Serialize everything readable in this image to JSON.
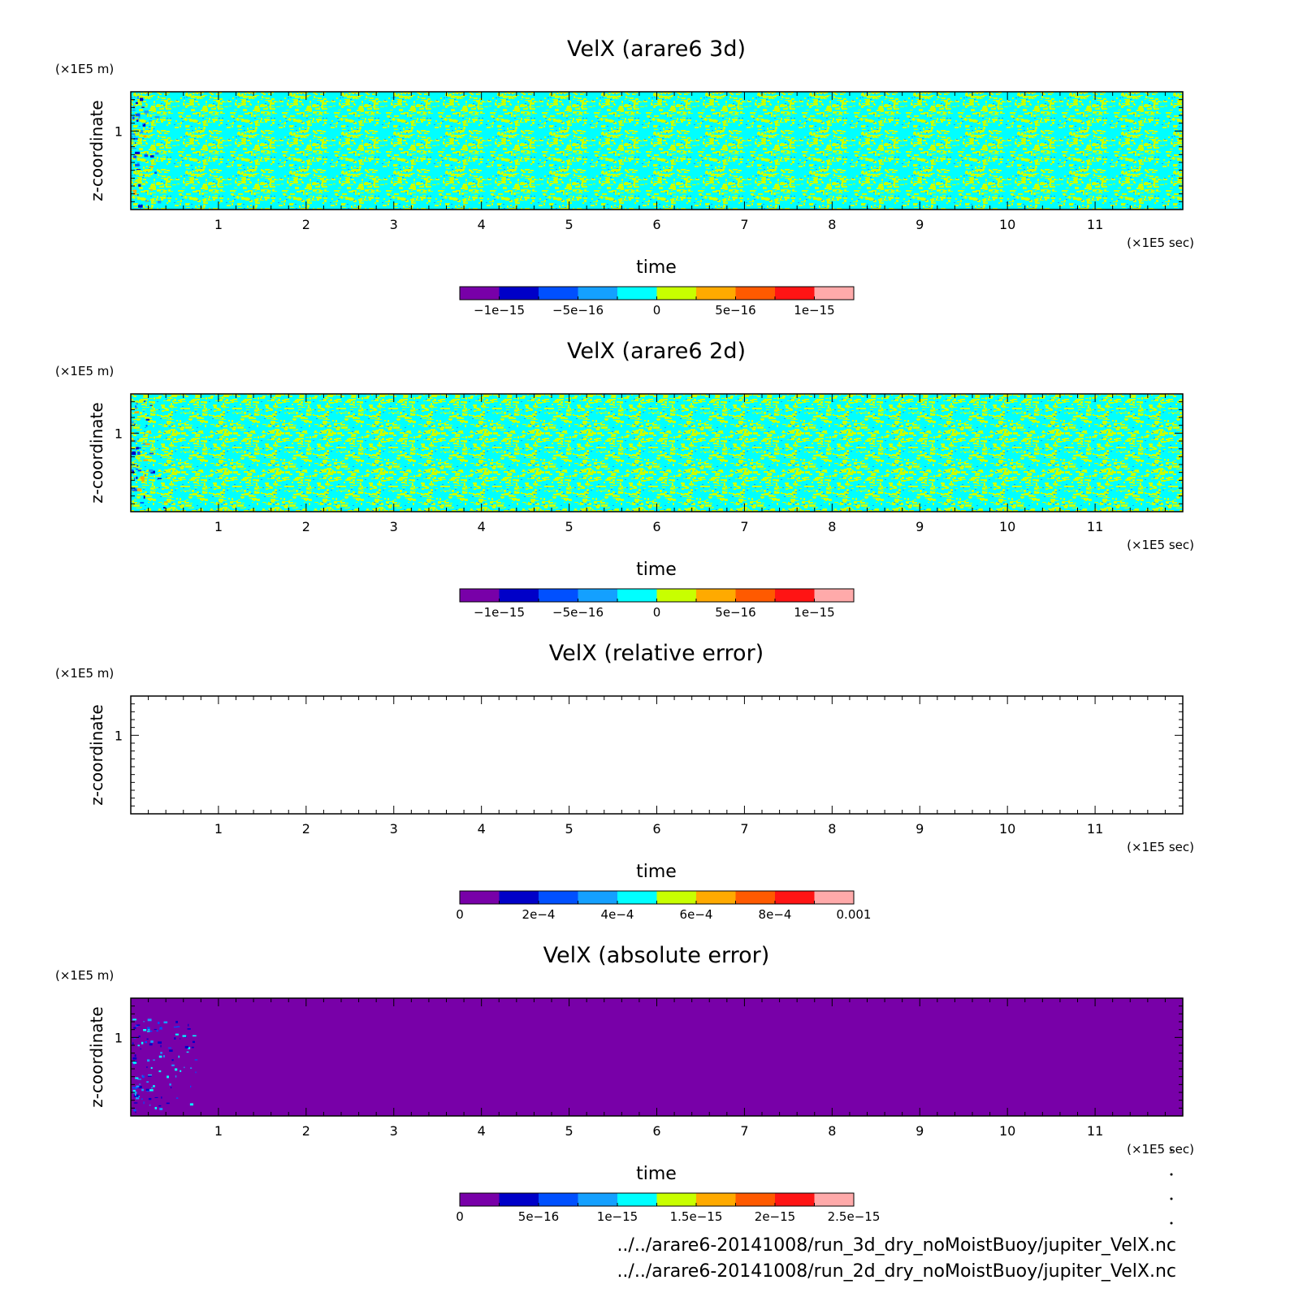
{
  "panels": [
    {
      "title": "VelX (arare6 3d)",
      "y_unit": "(×1E5 m)",
      "x_unit": "(×1E5 sec)",
      "ylabel": "z-coordinate",
      "xlabel": "time",
      "field": "noise",
      "colorbar_ticks": [
        "−1e−15",
        "−5e−16",
        "0",
        "5e−16",
        "1e−15"
      ]
    },
    {
      "title": "VelX (arare6 2d)",
      "y_unit": "(×1E5 m)",
      "x_unit": "(×1E5 sec)",
      "ylabel": "z-coordinate",
      "xlabel": "time",
      "field": "noise",
      "colorbar_ticks": [
        "−1e−15",
        "−5e−16",
        "0",
        "5e−16",
        "1e−15"
      ]
    },
    {
      "title": "VelX (relative error)",
      "y_unit": "(×1E5 m)",
      "x_unit": "(×1E5 sec)",
      "ylabel": "z-coordinate",
      "xlabel": "time",
      "field": "empty",
      "colorbar_ticks": [
        "0",
        "2e−4",
        "4e−4",
        "6e−4",
        "8e−4",
        "0.001"
      ]
    },
    {
      "title": "VelX (absolute error)",
      "y_unit": "(×1E5 m)",
      "x_unit": "(×1E5 sec)",
      "ylabel": "z-coordinate",
      "xlabel": "time",
      "field": "uniform-low",
      "colorbar_ticks": [
        "0",
        "5e−16",
        "1e−15",
        "1.5e−15",
        "2e−15",
        "2.5e−15"
      ]
    }
  ],
  "footer": {
    "source_3d": "../../arare6-20141008/run_3d_dry_noMoistBuoy/jupiter_VelX.nc",
    "source_2d": "../../arare6-20141008/run_2d_dry_noMoistBuoy/jupiter_VelX.nc"
  },
  "chart_data": [
    {
      "type": "heatmap",
      "title": "VelX (arare6 3d)",
      "xlabel": "time",
      "ylabel": "z-coordinate",
      "x_unit": "×1E5 sec",
      "y_unit": "×1E5 m",
      "xlim": [
        0,
        12
      ],
      "ylim": [
        0,
        1.5
      ],
      "x_ticks": [
        "1",
        "2",
        "3",
        "4",
        "5",
        "6",
        "7",
        "8",
        "9",
        "10",
        "11"
      ],
      "y_ticks": [
        "1"
      ],
      "colorbar_levels": [
        -1.25e-15,
        -1e-15,
        -7.5e-16,
        -5e-16,
        -2.5e-16,
        0,
        2.5e-16,
        5e-16,
        7.5e-16,
        1e-15,
        1.25e-15
      ],
      "colorbar_ticks": [
        "−1e−15",
        "−5e−16",
        "0",
        "5e−16",
        "1e−15"
      ],
      "colors": [
        "#7800a8",
        "#0000c8",
        "#0050ff",
        "#14a0ff",
        "#00ffff",
        "#c8ff00",
        "#ffaa00",
        "#ff5a00",
        "#ff1414",
        "#ffaaaa"
      ],
      "description_values": "values fluctuate between about -2.5e-16 and 2.5e-16 (cyan/yellow-green noise)"
    },
    {
      "type": "heatmap",
      "title": "VelX (arare6 2d)",
      "xlabel": "time",
      "ylabel": "z-coordinate",
      "x_unit": "×1E5 sec",
      "y_unit": "×1E5 m",
      "xlim": [
        0,
        12
      ],
      "ylim": [
        0,
        1.5
      ],
      "x_ticks": [
        "1",
        "2",
        "3",
        "4",
        "5",
        "6",
        "7",
        "8",
        "9",
        "10",
        "11"
      ],
      "y_ticks": [
        "1"
      ],
      "colorbar_ticks": [
        "−1e−15",
        "−5e−16",
        "0",
        "5e−16",
        "1e−15"
      ],
      "colors": [
        "#7800a8",
        "#0000c8",
        "#0050ff",
        "#14a0ff",
        "#00ffff",
        "#c8ff00",
        "#ffaa00",
        "#ff5a00",
        "#ff1414",
        "#ffaaaa"
      ]
    },
    {
      "type": "heatmap",
      "title": "VelX (relative error)",
      "xlabel": "time",
      "ylabel": "z-coordinate",
      "x_unit": "×1E5 sec",
      "y_unit": "×1E5 m",
      "xlim": [
        0,
        12
      ],
      "ylim": [
        0,
        1.5
      ],
      "x_ticks": [
        "1",
        "2",
        "3",
        "4",
        "5",
        "6",
        "7",
        "8",
        "9",
        "10",
        "11"
      ],
      "y_ticks": [
        "1"
      ],
      "colorbar_ticks": [
        "0",
        "2e−4",
        "4e−4",
        "6e−4",
        "8e−4",
        "0.001"
      ],
      "colors": [
        "#7800a8",
        "#0000c8",
        "#0050ff",
        "#14a0ff",
        "#00ffff",
        "#c8ff00",
        "#ffaa00",
        "#ff5a00",
        "#ff1414",
        "#ffaaaa"
      ]
    },
    {
      "type": "heatmap",
      "title": "VelX (absolute error)",
      "xlabel": "time",
      "ylabel": "z-coordinate",
      "x_unit": "×1E5 sec",
      "y_unit": "×1E5 m",
      "xlim": [
        0,
        12
      ],
      "ylim": [
        0,
        1.5
      ],
      "x_ticks": [
        "1",
        "2",
        "3",
        "4",
        "5",
        "6",
        "7",
        "8",
        "9",
        "10",
        "11"
      ],
      "y_ticks": [
        "1"
      ],
      "colorbar_ticks": [
        "0",
        "5e−16",
        "1e−15",
        "1.5e−15",
        "2e−15",
        "2.5e−15"
      ],
      "colors": [
        "#7800a8",
        "#0000c8",
        "#0050ff",
        "#14a0ff",
        "#00ffff",
        "#c8ff00",
        "#ffaa00",
        "#ff5a00",
        "#ff1414",
        "#ffaaaa"
      ]
    }
  ]
}
